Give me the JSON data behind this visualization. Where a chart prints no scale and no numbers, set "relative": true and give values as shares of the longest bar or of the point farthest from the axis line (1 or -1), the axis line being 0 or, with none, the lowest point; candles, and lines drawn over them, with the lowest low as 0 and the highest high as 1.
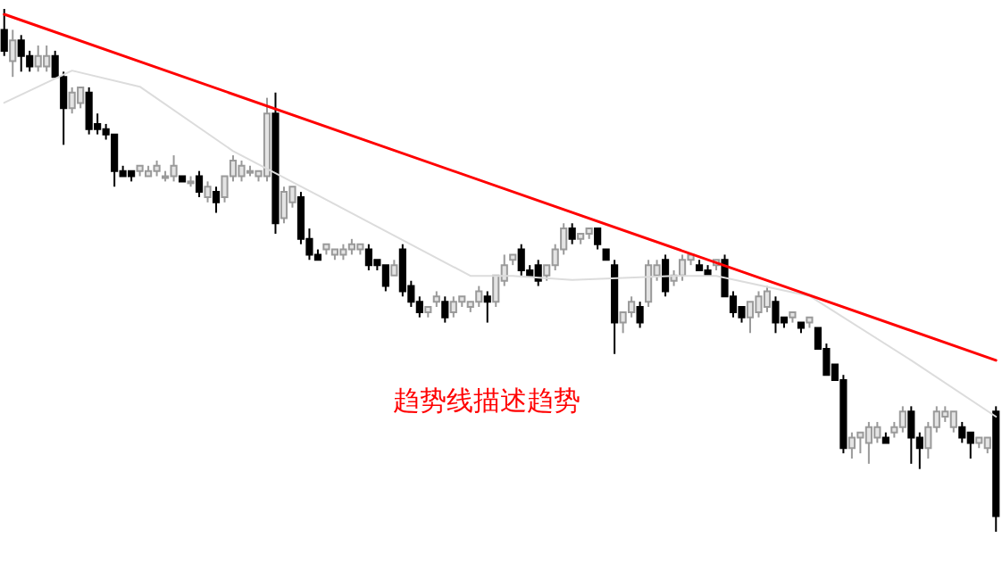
{
  "chart_data": [
    {
      "type": "candlestick",
      "relative": true,
      "annotations": [
        "趋势线描述趋势"
      ],
      "categories": [
        null,
        null,
        null,
        null,
        null,
        null,
        null,
        null,
        null,
        null,
        null,
        null,
        null,
        null,
        null,
        null,
        null,
        null,
        null,
        null,
        null,
        null,
        null,
        null,
        null,
        null,
        null,
        null,
        null,
        null,
        null,
        null,
        null,
        null,
        null,
        null,
        null,
        null,
        null,
        null,
        null,
        null,
        null,
        null,
        null,
        null,
        null,
        null,
        null,
        null,
        null,
        null,
        null,
        null,
        null,
        null,
        null,
        null,
        null,
        null,
        null,
        null,
        null,
        null,
        null,
        null,
        null,
        null,
        null,
        null,
        null,
        null,
        null,
        null,
        null,
        null,
        null,
        null,
        null,
        null,
        null,
        null,
        null,
        null,
        null,
        null,
        null,
        null,
        null,
        null,
        null,
        null,
        null,
        null,
        null,
        null,
        null,
        null,
        null,
        null,
        null,
        null,
        null,
        null,
        null,
        null,
        null,
        null,
        null,
        null,
        null,
        null,
        null,
        null,
        null,
        null,
        null,
        null
      ],
      "ohlc": [
        [
          0.96,
          1.0,
          0.91,
          0.92
        ],
        [
          0.9,
          0.96,
          0.87,
          0.94
        ],
        [
          0.94,
          0.95,
          0.88,
          0.91
        ],
        [
          0.91,
          0.92,
          0.88,
          0.89
        ],
        [
          0.89,
          0.93,
          0.88,
          0.91
        ],
        [
          0.89,
          0.93,
          0.88,
          0.91
        ],
        [
          0.91,
          0.92,
          0.87,
          0.87
        ],
        [
          0.87,
          0.88,
          0.74,
          0.81
        ],
        [
          0.81,
          0.85,
          0.8,
          0.84
        ],
        [
          0.82,
          0.85,
          0.81,
          0.85
        ],
        [
          0.84,
          0.85,
          0.76,
          0.77
        ],
        [
          0.78,
          0.8,
          0.76,
          0.77
        ],
        [
          0.77,
          0.78,
          0.75,
          0.76
        ],
        [
          0.76,
          0.76,
          0.66,
          0.69
        ],
        [
          0.69,
          0.7,
          0.68,
          0.68
        ],
        [
          0.69,
          0.69,
          0.67,
          0.68
        ],
        [
          0.69,
          0.7,
          0.68,
          0.7
        ],
        [
          0.68,
          0.7,
          0.68,
          0.69
        ],
        [
          0.69,
          0.71,
          0.68,
          0.7
        ],
        [
          0.68,
          0.69,
          0.67,
          0.68
        ],
        [
          0.68,
          0.72,
          0.67,
          0.7
        ],
        [
          0.68,
          0.68,
          0.67,
          0.67
        ],
        [
          0.67,
          0.68,
          0.66,
          0.67
        ],
        [
          0.68,
          0.69,
          0.64,
          0.65
        ],
        [
          0.64,
          0.67,
          0.63,
          0.66
        ],
        [
          0.65,
          0.66,
          0.61,
          0.63
        ],
        [
          0.64,
          0.68,
          0.63,
          0.68
        ],
        [
          0.68,
          0.72,
          0.67,
          0.71
        ],
        [
          0.68,
          0.71,
          0.67,
          0.7
        ],
        [
          0.69,
          0.7,
          0.68,
          0.69
        ],
        [
          0.68,
          0.69,
          0.67,
          0.69
        ],
        [
          0.68,
          0.83,
          0.67,
          0.8
        ],
        [
          0.8,
          0.84,
          0.57,
          0.59
        ],
        [
          0.6,
          0.66,
          0.59,
          0.65
        ],
        [
          0.63,
          0.66,
          0.62,
          0.66
        ],
        [
          0.64,
          0.65,
          0.55,
          0.56
        ],
        [
          0.56,
          0.58,
          0.52,
          0.53
        ],
        [
          0.53,
          0.54,
          0.52,
          0.52
        ],
        [
          0.54,
          0.55,
          0.53,
          0.55
        ],
        [
          0.53,
          0.54,
          0.52,
          0.54
        ],
        [
          0.53,
          0.55,
          0.52,
          0.54
        ],
        [
          0.54,
          0.56,
          0.53,
          0.55
        ],
        [
          0.54,
          0.55,
          0.53,
          0.55
        ],
        [
          0.54,
          0.55,
          0.5,
          0.51
        ],
        [
          0.52,
          0.52,
          0.5,
          0.51
        ],
        [
          0.51,
          0.51,
          0.46,
          0.47
        ],
        [
          0.49,
          0.52,
          0.49,
          0.51
        ],
        [
          0.54,
          0.55,
          0.45,
          0.46
        ],
        [
          0.47,
          0.48,
          0.43,
          0.44
        ],
        [
          0.44,
          0.45,
          0.41,
          0.42
        ],
        [
          0.42,
          0.43,
          0.41,
          0.43
        ],
        [
          0.44,
          0.46,
          0.43,
          0.45
        ],
        [
          0.44,
          0.45,
          0.4,
          0.41
        ],
        [
          0.42,
          0.45,
          0.41,
          0.44
        ],
        [
          0.44,
          0.45,
          0.43,
          0.45
        ],
        [
          0.43,
          0.44,
          0.42,
          0.44
        ],
        [
          0.44,
          0.47,
          0.43,
          0.46
        ],
        [
          0.45,
          0.46,
          0.4,
          0.44
        ],
        [
          0.44,
          0.49,
          0.43,
          0.49
        ],
        [
          0.48,
          0.53,
          0.47,
          0.51
        ],
        [
          0.52,
          0.53,
          0.51,
          0.53
        ],
        [
          0.54,
          0.55,
          0.49,
          0.5
        ],
        [
          0.5,
          0.51,
          0.49,
          0.49
        ],
        [
          0.51,
          0.52,
          0.47,
          0.48
        ],
        [
          0.49,
          0.51,
          0.48,
          0.51
        ],
        [
          0.51,
          0.55,
          0.5,
          0.54
        ],
        [
          0.54,
          0.59,
          0.53,
          0.58
        ],
        [
          0.58,
          0.59,
          0.55,
          0.56
        ],
        [
          0.56,
          0.57,
          0.55,
          0.57
        ],
        [
          0.57,
          0.58,
          0.56,
          0.58
        ],
        [
          0.58,
          0.58,
          0.54,
          0.55
        ],
        [
          0.54,
          0.54,
          0.52,
          0.52
        ],
        [
          0.51,
          0.52,
          0.34,
          0.4
        ],
        [
          0.4,
          0.42,
          0.38,
          0.42
        ],
        [
          0.42,
          0.45,
          0.41,
          0.44
        ],
        [
          0.43,
          0.44,
          0.39,
          0.4
        ],
        [
          0.44,
          0.52,
          0.43,
          0.51
        ],
        [
          0.49,
          0.52,
          0.48,
          0.51
        ],
        [
          0.52,
          0.53,
          0.45,
          0.46
        ],
        [
          0.48,
          0.5,
          0.47,
          0.49
        ],
        [
          0.49,
          0.53,
          0.48,
          0.52
        ],
        [
          0.52,
          0.53,
          0.51,
          0.53
        ],
        [
          0.51,
          0.52,
          0.5,
          0.5
        ],
        [
          0.5,
          0.51,
          0.49,
          0.49
        ],
        [
          0.51,
          0.52,
          0.5,
          0.52
        ],
        [
          0.52,
          0.53,
          0.45,
          0.45
        ],
        [
          0.45,
          0.46,
          0.41,
          0.42
        ],
        [
          0.43,
          0.43,
          0.4,
          0.41
        ],
        [
          0.41,
          0.44,
          0.38,
          0.44
        ],
        [
          0.42,
          0.46,
          0.41,
          0.45
        ],
        [
          0.43,
          0.47,
          0.42,
          0.46
        ],
        [
          0.44,
          0.45,
          0.38,
          0.4
        ],
        [
          0.41,
          0.41,
          0.39,
          0.4
        ],
        [
          0.41,
          0.42,
          0.4,
          0.42
        ],
        [
          0.4,
          0.4,
          0.38,
          0.39
        ],
        [
          0.4,
          0.41,
          0.39,
          0.41
        ],
        [
          0.39,
          0.39,
          0.35,
          0.35
        ],
        [
          0.35,
          0.36,
          0.3,
          0.3
        ],
        [
          0.32,
          0.32,
          0.29,
          0.29
        ],
        [
          0.29,
          0.3,
          0.15,
          0.16
        ],
        [
          0.16,
          0.19,
          0.14,
          0.18
        ],
        [
          0.18,
          0.19,
          0.15,
          0.19
        ],
        [
          0.17,
          0.21,
          0.13,
          0.2
        ],
        [
          0.18,
          0.21,
          0.17,
          0.2
        ],
        [
          0.18,
          0.19,
          0.17,
          0.17
        ],
        [
          0.19,
          0.21,
          0.18,
          0.2
        ],
        [
          0.2,
          0.24,
          0.19,
          0.23
        ],
        [
          0.23,
          0.24,
          0.13,
          0.18
        ],
        [
          0.18,
          0.19,
          0.12,
          0.16
        ],
        [
          0.16,
          0.21,
          0.14,
          0.2
        ],
        [
          0.2,
          0.24,
          0.19,
          0.23
        ],
        [
          0.22,
          0.24,
          0.21,
          0.23
        ],
        [
          0.2,
          0.23,
          0.19,
          0.23
        ],
        [
          0.2,
          0.21,
          0.17,
          0.18
        ],
        [
          0.19,
          0.19,
          0.14,
          0.17
        ],
        [
          0.17,
          0.18,
          0.16,
          0.18
        ],
        [
          0.16,
          0.18,
          0.15,
          0.18
        ],
        [
          0.23,
          0.24,
          0.0,
          0.03
        ]
      ]
    },
    {
      "type": "line",
      "relative": true,
      "categories": [
        null,
        null,
        null,
        null,
        null,
        null,
        null,
        null,
        null,
        null,
        null,
        null,
        null,
        null,
        null,
        null,
        null,
        null,
        null,
        null,
        null,
        null,
        null,
        null,
        null,
        null,
        null,
        null,
        null,
        null,
        null,
        null,
        null,
        null,
        null,
        null,
        null,
        null,
        null,
        null,
        null,
        null,
        null,
        null,
        null,
        null,
        null,
        null,
        null,
        null,
        null,
        null,
        null,
        null,
        null,
        null,
        null,
        null,
        null,
        null,
        null,
        null,
        null,
        null,
        null,
        null,
        null,
        null,
        null,
        null,
        null,
        null,
        null,
        null,
        null,
        null,
        null,
        null,
        null,
        null,
        null,
        null,
        null,
        null,
        null,
        null,
        null,
        null,
        null,
        null,
        null,
        null,
        null,
        null,
        null,
        null,
        null,
        null,
        null,
        null,
        null,
        null,
        null,
        null,
        null,
        null,
        null,
        null,
        null,
        null,
        null,
        null,
        null,
        null,
        null,
        null,
        null,
        null
      ],
      "series": [
        {
          "color": "#dcdcdc",
          "values": [
            0.78,
            null,
            null,
            null,
            null,
            null,
            null,
            null,
            0.86,
            null,
            null,
            null,
            null,
            null,
            null,
            null,
            0.82,
            null,
            null,
            null,
            null,
            null,
            null,
            null,
            null,
            null,
            null,
            0.66,
            null,
            null,
            null,
            null,
            null,
            null,
            null,
            null,
            null,
            0.55,
            null,
            null,
            null,
            null,
            null,
            null,
            null,
            null,
            null,
            null,
            null,
            null,
            null,
            null,
            null,
            null,
            null,
            0.35,
            null,
            null,
            null,
            null,
            0.35,
            null,
            null,
            null,
            null,
            null,
            null,
            0.34,
            null,
            null,
            null,
            null,
            null,
            null,
            null,
            null,
            null,
            null,
            null,
            0.35,
            null,
            null,
            null,
            null,
            0.35,
            null,
            null,
            null,
            null,
            null,
            null,
            null,
            null,
            null,
            null,
            0.3,
            null,
            null,
            null,
            null,
            null,
            null,
            null,
            null,
            null,
            null,
            null,
            0.14,
            null,
            null,
            null,
            null,
            null,
            null,
            null,
            null,
            null,
            0
          ]
        },
        {
          "color": "#ff0000",
          "values": [
            1,
            null,
            null,
            null,
            null,
            null,
            null,
            null,
            null,
            null,
            null,
            null,
            null,
            null,
            null,
            null,
            null,
            null,
            null,
            null,
            null,
            null,
            null,
            null,
            null,
            null,
            null,
            null,
            null,
            null,
            null,
            null,
            null,
            null,
            null,
            null,
            null,
            null,
            null,
            null,
            null,
            null,
            null,
            null,
            null,
            null,
            null,
            null,
            null,
            null,
            null,
            null,
            null,
            null,
            null,
            null,
            null,
            null,
            null,
            null,
            null,
            null,
            null,
            null,
            null,
            null,
            null,
            null,
            null,
            null,
            null,
            null,
            null,
            null,
            null,
            null,
            null,
            null,
            null,
            null,
            null,
            null,
            null,
            null,
            null,
            null,
            null,
            null,
            null,
            null,
            null,
            null,
            null,
            null,
            null,
            null,
            null,
            null,
            null,
            null,
            null,
            null,
            null,
            null,
            null,
            null,
            null,
            null,
            null,
            null,
            null,
            null,
            null,
            null,
            null,
            null,
            null,
            0.14
          ]
        }
      ]
    }
  ]
}
